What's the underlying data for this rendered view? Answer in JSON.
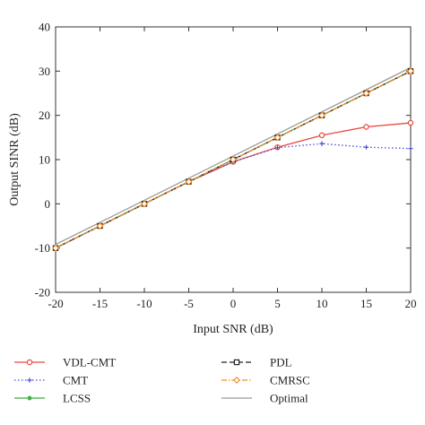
{
  "chart_data": {
    "type": "line",
    "xlabel": "Input SNR (dB)",
    "ylabel": "Output SINR (dB)",
    "xlim": [
      -20,
      20
    ],
    "ylim": [
      -20,
      40
    ],
    "xticks": [
      -20,
      -15,
      -10,
      -5,
      0,
      5,
      10,
      15,
      20
    ],
    "yticks": [
      -20,
      -10,
      0,
      10,
      20,
      30,
      40
    ],
    "grid": false,
    "legend_position": "below",
    "series": [
      {
        "name": "VDL-CMT",
        "color": "#e8473b",
        "dash": "solid",
        "marker": "circle",
        "x": [
          -20,
          -15,
          -10,
          -5,
          0,
          5,
          10,
          15,
          20
        ],
        "y": [
          -10,
          -5,
          0,
          5,
          9.5,
          12.8,
          15.5,
          17.4,
          18.3
        ]
      },
      {
        "name": "PDL",
        "color": "#222222",
        "dash": "dashed",
        "marker": "square",
        "x": [
          -20,
          -15,
          -10,
          -5,
          0,
          5,
          10,
          15,
          20
        ],
        "y": [
          -10,
          -5,
          0,
          5,
          10,
          15,
          20,
          25,
          30
        ]
      },
      {
        "name": "CMT",
        "color": "#4b4bd6",
        "dash": "dotted",
        "marker": "plus",
        "x": [
          -20,
          -15,
          -10,
          -5,
          0,
          5,
          10,
          15,
          20
        ],
        "y": [
          -10,
          -5,
          0,
          5,
          9.5,
          12.7,
          13.6,
          12.8,
          12.5
        ]
      },
      {
        "name": "CMRSC",
        "color": "#f08c2a",
        "dash": "dashdot",
        "marker": "diamond",
        "x": [
          -20,
          -15,
          -10,
          -5,
          0,
          5,
          10,
          15,
          20
        ],
        "y": [
          -10,
          -5,
          0,
          5,
          10,
          15,
          20,
          25,
          30
        ]
      },
      {
        "name": "LCSS",
        "color": "#3aa63a",
        "dash": "solid",
        "marker": "star",
        "x": [
          -20,
          -15,
          -10,
          -5,
          0,
          5,
          10,
          15,
          20
        ],
        "y": [
          -10,
          -5,
          0,
          5,
          10,
          15,
          20,
          25,
          30
        ]
      },
      {
        "name": "Optimal",
        "color": "#9a9a9a",
        "dash": "solid",
        "marker": "none",
        "x": [
          -20,
          20
        ],
        "y": [
          -9.2,
          30.8
        ]
      }
    ]
  }
}
